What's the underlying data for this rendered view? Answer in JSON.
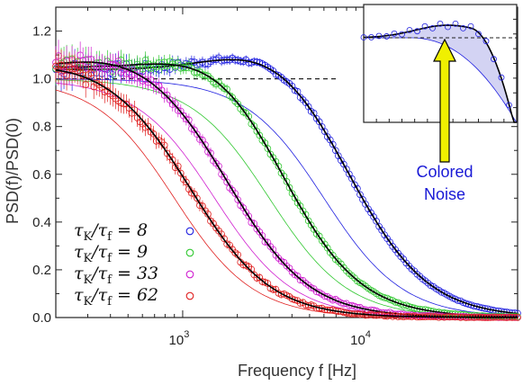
{
  "chart_data": {
    "type": "scatter",
    "xlabel": "Frequency f [Hz]",
    "ylabel": "PSD(f)/PSD(0)",
    "x_scale": "log",
    "xlim": [
      200,
      70000
    ],
    "ylim": [
      0,
      1.3
    ],
    "x_ticks": [
      1000,
      10000
    ],
    "x_tick_labels": [
      {
        "base": "10",
        "exp": "3"
      },
      {
        "base": "10",
        "exp": "4"
      }
    ],
    "y_ticks": [
      0.0,
      0.2,
      0.4,
      0.6,
      0.8,
      1.0,
      1.2
    ],
    "y_tick_labels": [
      "0.0",
      "0.2",
      "0.4",
      "0.6",
      "0.8",
      "1.0",
      "1.2"
    ],
    "reference_line": {
      "y": 1.0,
      "style": "dashed"
    },
    "grid": false,
    "legend_position": "bottom-left",
    "series": [
      {
        "name": "τK/τf = 8",
        "color": "#2020e0",
        "cutoff_hz": 9000,
        "peak": 1.12,
        "peak_hz": 3500,
        "start": 1.04,
        "thin_cutoff_hz": 6000
      },
      {
        "name": "τK/τf = 9",
        "color": "#30c830",
        "cutoff_hz": 3800,
        "peak": 1.1,
        "peak_hz": 1800,
        "start": 1.05,
        "thin_cutoff_hz": 3000
      },
      {
        "name": "τK/τf = 33",
        "color": "#d020d0",
        "cutoff_hz": 1900,
        "peak": 1.07,
        "peak_hz": 500,
        "start": 1.04,
        "thin_cutoff_hz": 1500
      },
      {
        "name": "τK/τf = 62",
        "color": "#e02020",
        "cutoff_hz": 1150,
        "peak": 1.04,
        "peak_hz": 250,
        "start": 1.03,
        "thin_cutoff_hz": 900
      }
    ],
    "legend_entries": [
      {
        "lhs_main": "τ",
        "lhs_sub": "K",
        "mid_main": "τ",
        "mid_sub": "f",
        "rhs": "8"
      },
      {
        "lhs_main": "τ",
        "lhs_sub": "K",
        "mid_main": "τ",
        "mid_sub": "f",
        "rhs": "9"
      },
      {
        "lhs_main": "τ",
        "lhs_sub": "K",
        "mid_main": "τ",
        "mid_sub": "f",
        "rhs": "33"
      },
      {
        "lhs_main": "τ",
        "lhs_sub": "K",
        "mid_main": "τ",
        "mid_sub": "f",
        "rhs": "62"
      }
    ],
    "inset": {
      "annotation_line1": "Colored",
      "annotation_line2": "Noise",
      "fill_color": "#c8c8f0",
      "arrow_color": "#f0f000"
    }
  }
}
